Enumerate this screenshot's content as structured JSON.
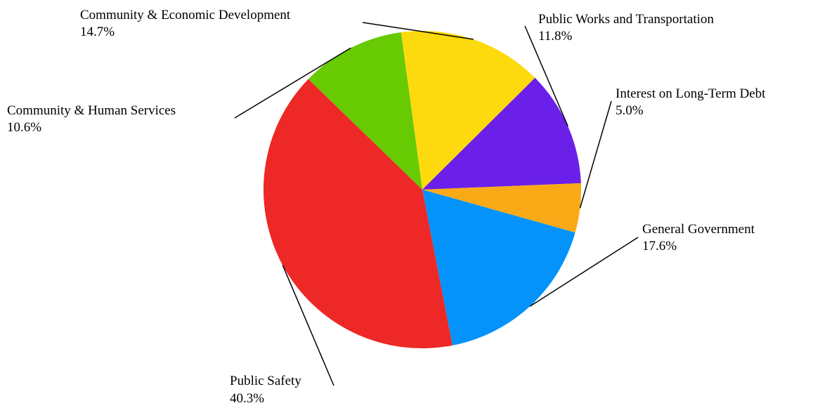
{
  "chart_data": {
    "type": "pie",
    "title": "",
    "slices": [
      {
        "label": "Community & Economic Development",
        "value_label": "14.7%",
        "value": 14.7,
        "color": "#FDDA0D"
      },
      {
        "label": "Public Works and Transportation",
        "value_label": "11.8%",
        "value": 11.8,
        "color": "#6A20E8"
      },
      {
        "label": "Interest on Long-Term Debt",
        "value_label": "5.0%",
        "value": 5.0,
        "color": "#FAAA17"
      },
      {
        "label": "General Government",
        "value_label": "17.6%",
        "value": 17.6,
        "color": "#0393FA"
      },
      {
        "label": "Public Safety",
        "value_label": "40.3%",
        "value": 40.3,
        "color": "#EE2826"
      },
      {
        "label": "Community & Human Services",
        "value_label": "10.6%",
        "value": 10.6,
        "color": "#67CA03"
      }
    ]
  }
}
